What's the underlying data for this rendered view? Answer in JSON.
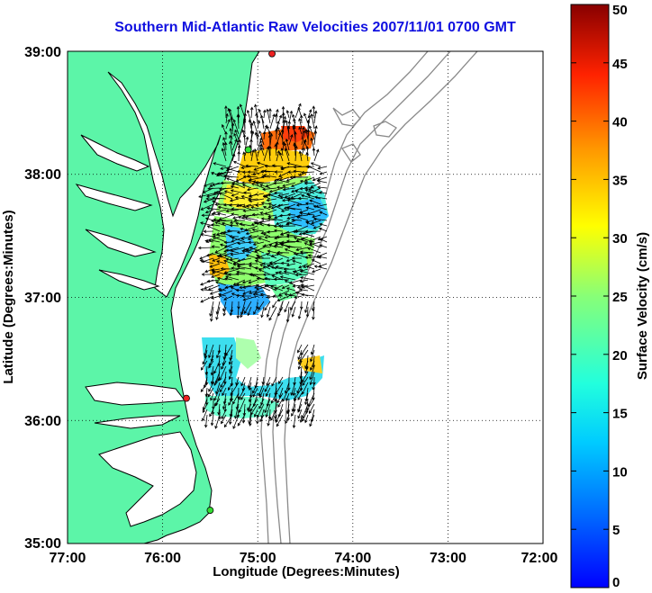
{
  "title": "Southern Mid-Atlantic Raw Velocities 2007/11/01 0700 GMT",
  "axes": {
    "xlabel": "Longitude (Degrees:Minutes)",
    "ylabel": "Latitude (Degrees:Minutes)",
    "xticks": [
      "77:00",
      "76:00",
      "75:00",
      "74:00",
      "73:00",
      "72:00"
    ],
    "yticks": [
      "39:00",
      "38:00",
      "37:00",
      "36:00",
      "35:00"
    ],
    "xlim": [
      -77,
      -72
    ],
    "ylim": [
      35,
      39
    ],
    "grid": "dotted"
  },
  "colorbar": {
    "label": "Surface Velocity (cm/s)",
    "ticks": [
      "0",
      "5",
      "10",
      "15",
      "20",
      "25",
      "30",
      "35",
      "40",
      "45",
      "50"
    ],
    "range": [
      0,
      50
    ],
    "colormap": "jet"
  },
  "colors": {
    "land": "#5cf5a8",
    "coast": "#000000",
    "bathymetry": "#8a8a8a",
    "title": "#1010e0",
    "station_green": "#33dd33",
    "station_red": "#ee2222"
  },
  "stations": [
    {
      "color": "red",
      "lon": -74.85,
      "lat": 38.98
    },
    {
      "color": "green",
      "lon": -75.1,
      "lat": 38.2
    },
    {
      "color": "red",
      "lon": -75.75,
      "lat": 36.18
    },
    {
      "color": "green",
      "lon": -75.5,
      "lat": 35.27
    }
  ]
}
